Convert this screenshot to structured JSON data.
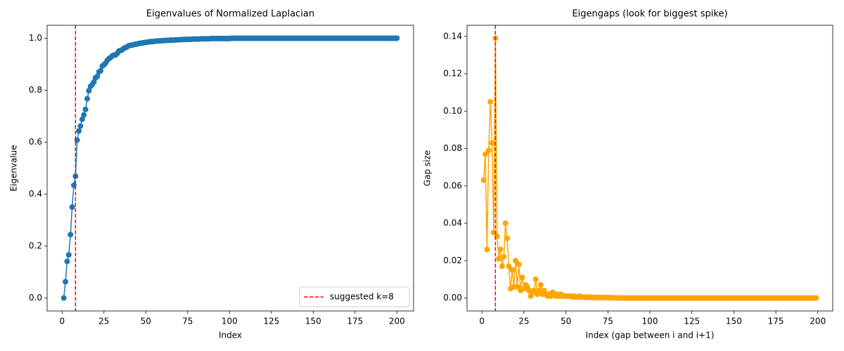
{
  "chart_data": [
    {
      "type": "line",
      "title": "Eigenvalues of Normalized Laplacian",
      "xlabel": "Index",
      "ylabel": "Eigenvalue",
      "color": "#1f77b4",
      "x": [
        1,
        2,
        3,
        4,
        5,
        6,
        7,
        8,
        9,
        10,
        11,
        12,
        13,
        14,
        15,
        16,
        17,
        18,
        19,
        20,
        21,
        22,
        23,
        24,
        25,
        26,
        27,
        28,
        29,
        30,
        31,
        32,
        33,
        34,
        35,
        36,
        37,
        38,
        39,
        40,
        41,
        42,
        43,
        44,
        45,
        46,
        47,
        48,
        49,
        50,
        51,
        52,
        53,
        54,
        55,
        56,
        57,
        58,
        59,
        60,
        61,
        62,
        63,
        64,
        65,
        66,
        67,
        68,
        69,
        70,
        71,
        72,
        73,
        74,
        75,
        76,
        77,
        78,
        79,
        80,
        81,
        82,
        83,
        84,
        85,
        86,
        87,
        88,
        89,
        90,
        91,
        92,
        93,
        94,
        95,
        96,
        97,
        98,
        99,
        100,
        101,
        102,
        103,
        104,
        105,
        106,
        107,
        108,
        109,
        110,
        111,
        112,
        113,
        114,
        115,
        116,
        117,
        118,
        119,
        120,
        121,
        122,
        123,
        124,
        125,
        126,
        127,
        128,
        129,
        130,
        131,
        132,
        133,
        134,
        135,
        136,
        137,
        138,
        139,
        140,
        141,
        142,
        143,
        144,
        145,
        146,
        147,
        148,
        149,
        150,
        151,
        152,
        153,
        154,
        155,
        156,
        157,
        158,
        159,
        160,
        161,
        162,
        163,
        164,
        165,
        166,
        167,
        168,
        169,
        170,
        171,
        172,
        173,
        174,
        175,
        176,
        177,
        178,
        179,
        180,
        181,
        182,
        183,
        184,
        185,
        186,
        187,
        188,
        189,
        190,
        191,
        192,
        193,
        194,
        195,
        196,
        197,
        198,
        199,
        200
      ],
      "values": [
        0.0,
        0.063,
        0.141,
        0.166,
        0.244,
        0.35,
        0.434,
        0.469,
        0.608,
        0.643,
        0.662,
        0.688,
        0.705,
        0.726,
        0.767,
        0.798,
        0.815,
        0.822,
        0.832,
        0.848,
        0.853,
        0.87,
        0.875,
        0.893,
        0.898,
        0.905,
        0.915,
        0.922,
        0.926,
        0.932,
        0.935,
        0.936,
        0.942,
        0.951,
        0.953,
        0.956,
        0.962,
        0.964,
        0.968,
        0.972,
        0.973,
        0.974,
        0.976,
        0.977,
        0.978,
        0.98,
        0.981,
        0.982,
        0.983,
        0.984,
        0.985,
        0.986,
        0.987,
        0.987,
        0.988,
        0.989,
        0.99,
        0.99,
        0.99,
        0.991,
        0.991,
        0.992,
        0.992,
        0.992,
        0.993,
        0.993,
        0.993,
        0.994,
        0.994,
        0.994,
        0.995,
        0.995,
        0.995,
        0.996,
        0.996,
        0.996,
        0.996,
        0.997,
        0.997,
        0.997,
        0.997,
        0.997,
        0.998,
        0.998,
        0.998,
        0.998,
        0.998,
        0.998,
        0.999,
        0.999,
        0.999,
        0.999,
        0.999,
        0.999,
        0.999,
        0.999,
        0.999,
        0.999,
        0.999,
        0.999,
        1.0,
        1.0,
        1.0,
        1.0,
        1.0,
        1.0,
        1.0,
        1.0,
        1.0,
        1.0,
        1.0,
        1.0,
        1.0,
        1.0,
        1.0,
        1.0,
        1.0,
        1.0,
        1.0,
        1.0,
        1.0,
        1.0,
        1.0,
        1.0,
        1.0,
        1.0,
        1.0,
        1.0,
        1.0,
        1.0,
        1.0,
        1.0,
        1.0,
        1.0,
        1.0,
        1.0,
        1.0,
        1.0,
        1.0,
        1.0,
        1.0,
        1.0,
        1.0,
        1.0,
        1.0,
        1.0,
        1.0,
        1.0,
        1.0,
        1.0,
        1.0,
        1.0,
        1.0,
        1.0,
        1.0,
        1.0,
        1.0,
        1.0,
        1.0,
        1.0,
        1.0,
        1.0,
        1.0,
        1.0,
        1.0,
        1.0,
        1.0,
        1.0,
        1.0,
        1.0,
        1.0,
        1.0,
        1.0,
        1.0,
        1.0,
        1.0,
        1.0,
        1.0,
        1.0,
        1.0,
        1.0,
        1.0,
        1.0,
        1.0,
        1.0,
        1.0,
        1.0,
        1.0,
        1.0,
        1.0,
        1.0,
        1.0,
        1.0,
        1.0,
        1.0,
        1.0,
        1.0,
        1.0,
        1.0,
        1.0
      ],
      "xlim": [
        -8.95,
        209.95
      ],
      "ylim": [
        -0.05,
        1.05
      ],
      "xticks": [
        0,
        25,
        50,
        75,
        100,
        125,
        150,
        175,
        200
      ],
      "yticks": [
        {
          "value": 0,
          "label": "0.0"
        },
        {
          "value": 0.2,
          "label": "0.2"
        },
        {
          "value": 0.4,
          "label": "0.4"
        },
        {
          "value": 0.6,
          "label": "0.6"
        },
        {
          "value": 0.8,
          "label": "0.8"
        },
        {
          "value": 1,
          "label": "1.0"
        }
      ],
      "vline": {
        "x": 8,
        "label": "suggested k=8",
        "color": "#ff0000"
      },
      "legend": "lower right"
    },
    {
      "type": "line",
      "title": "Eigengaps (look for biggest spike)",
      "xlabel": "Index (gap between i and i+1)",
      "ylabel": "Gap size",
      "color": "#ffa500",
      "x": [
        1,
        2,
        3,
        4,
        5,
        6,
        7,
        8,
        9,
        10,
        11,
        12,
        13,
        14,
        15,
        16,
        17,
        18,
        19,
        20,
        21,
        22,
        23,
        24,
        25,
        26,
        27,
        28,
        29,
        30,
        31,
        32,
        33,
        34,
        35,
        36,
        37,
        38,
        39,
        40,
        41,
        42,
        43,
        44,
        45,
        46,
        47,
        48,
        49,
        50,
        51,
        52,
        53,
        54,
        55,
        56,
        57,
        58,
        59,
        60,
        61,
        62,
        63,
        64,
        65,
        66,
        67,
        68,
        69,
        70,
        71,
        72,
        73,
        74,
        75,
        76,
        77,
        78,
        79,
        80,
        81,
        82,
        83,
        84,
        85,
        86,
        87,
        88,
        89,
        90,
        91,
        92,
        93,
        94,
        95,
        96,
        97,
        98,
        99,
        100,
        101,
        102,
        103,
        104,
        105,
        106,
        107,
        108,
        109,
        110,
        111,
        112,
        113,
        114,
        115,
        116,
        117,
        118,
        119,
        120,
        121,
        122,
        123,
        124,
        125,
        126,
        127,
        128,
        129,
        130,
        131,
        132,
        133,
        134,
        135,
        136,
        137,
        138,
        139,
        140,
        141,
        142,
        143,
        144,
        145,
        146,
        147,
        148,
        149,
        150,
        151,
        152,
        153,
        154,
        155,
        156,
        157,
        158,
        159,
        160,
        161,
        162,
        163,
        164,
        165,
        166,
        167,
        168,
        169,
        170,
        171,
        172,
        173,
        174,
        175,
        176,
        177,
        178,
        179,
        180,
        181,
        182,
        183,
        184,
        185,
        186,
        187,
        188,
        189,
        190,
        191,
        192,
        193,
        194,
        195,
        196,
        197,
        198,
        199
      ],
      "values": [
        0.063,
        0.077,
        0.026,
        0.079,
        0.105,
        0.083,
        0.035,
        0.139,
        0.033,
        0.021,
        0.026,
        0.017,
        0.022,
        0.04,
        0.032,
        0.017,
        0.005,
        0.015,
        0.006,
        0.02,
        0.006,
        0.018,
        0.004,
        0.011,
        0.005,
        0.007,
        0.006,
        0.004,
        0.001,
        0.003,
        0.004,
        0.01,
        0.002,
        0.004,
        0.007,
        0.002,
        0.004,
        0.002,
        0.001,
        0.002,
        0.001,
        0.003,
        0.002,
        0.001,
        0.002,
        0.001,
        0.002,
        0.001,
        0.001,
        0.001,
        0.001,
        0.001,
        0.001,
        0.0005,
        0.001,
        0.0005,
        0.0005,
        0.001,
        0.0005,
        0.0005,
        0.0005,
        0.0003,
        0.0005,
        0.0003,
        0.0004,
        0.0003,
        0.0003,
        0.0004,
        0.0002,
        0.0003,
        0.0002,
        0.0003,
        0.0002,
        0.0002,
        0.0003,
        0.0002,
        0.0001,
        0.0002,
        0.0001,
        0.0001,
        0,
        0,
        0,
        0,
        0,
        0,
        0,
        0,
        0,
        0,
        0,
        0,
        0,
        0,
        0,
        0,
        0,
        0,
        0,
        0,
        0,
        0,
        0,
        0,
        0,
        0,
        0,
        0,
        0,
        0,
        0,
        0,
        0,
        0,
        0,
        0,
        0,
        0,
        0,
        0,
        0,
        0,
        0,
        0,
        0,
        0,
        0,
        0,
        0,
        0,
        0,
        0,
        0,
        0,
        0,
        0,
        0,
        0,
        0,
        0,
        0,
        0,
        0,
        0,
        0,
        0,
        0,
        0,
        0,
        0,
        0,
        0,
        0,
        0,
        0,
        0,
        0,
        0,
        0,
        0,
        0,
        0,
        0,
        0,
        0,
        0,
        0,
        0,
        0,
        0,
        0,
        0,
        0,
        0,
        0,
        0,
        0,
        0,
        0,
        0,
        0,
        0,
        0,
        0,
        0,
        0,
        0,
        0,
        0,
        0,
        0,
        0,
        0,
        0,
        0,
        0,
        0,
        0,
        0
      ],
      "xlim": [
        -8.9,
        208.9
      ],
      "ylim": [
        -0.00695,
        0.14595
      ],
      "xticks": [
        0,
        25,
        50,
        75,
        100,
        125,
        150,
        175,
        200
      ],
      "yticks": [
        {
          "value": 0,
          "label": "0.00"
        },
        {
          "value": 0.02,
          "label": "0.02"
        },
        {
          "value": 0.04,
          "label": "0.04"
        },
        {
          "value": 0.06,
          "label": "0.06"
        },
        {
          "value": 0.08,
          "label": "0.08"
        },
        {
          "value": 0.1,
          "label": "0.10"
        },
        {
          "value": 0.12,
          "label": "0.12"
        },
        {
          "value": 0.14,
          "label": "0.14"
        }
      ],
      "vline": {
        "x": 8,
        "color": "#ff0000"
      }
    }
  ]
}
